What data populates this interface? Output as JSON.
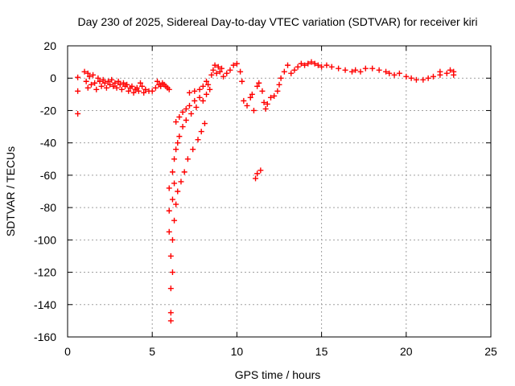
{
  "chart_data": {
    "type": "scatter",
    "title": "Day 230 of 2025, Sidereal Day-to-day VTEC variation (SDTVAR) for receiver kiri",
    "xlabel": "GPS time / hours",
    "ylabel": "SDTVAR / TECUs",
    "xlim": [
      0,
      25
    ],
    "ylim": [
      -160,
      20
    ],
    "xticks": [
      0,
      5,
      10,
      15,
      20,
      25
    ],
    "yticks": [
      -160,
      -140,
      -120,
      -100,
      -80,
      -60,
      -40,
      -20,
      0,
      20
    ],
    "grid": true,
    "marker": "plus",
    "color": "#ff0000",
    "series": [
      {
        "name": "",
        "points": [
          [
            0.6,
            0.5
          ],
          [
            0.6,
            -8
          ],
          [
            0.6,
            -22
          ],
          [
            1.0,
            4
          ],
          [
            1.1,
            -2
          ],
          [
            1.2,
            3
          ],
          [
            1.2,
            -6
          ],
          [
            1.3,
            1
          ],
          [
            1.4,
            -4
          ],
          [
            1.5,
            2
          ],
          [
            1.6,
            -3
          ],
          [
            1.7,
            -7
          ],
          [
            1.8,
            0
          ],
          [
            1.9,
            -2
          ],
          [
            2.0,
            -5
          ],
          [
            2.1,
            -1
          ],
          [
            2.2,
            -3
          ],
          [
            2.3,
            -6
          ],
          [
            2.4,
            -2
          ],
          [
            2.5,
            -4
          ],
          [
            2.6,
            -1
          ],
          [
            2.7,
            -5
          ],
          [
            2.8,
            -3
          ],
          [
            2.9,
            -6
          ],
          [
            3.0,
            -2
          ],
          [
            3.1,
            -4
          ],
          [
            3.2,
            -7
          ],
          [
            3.3,
            -3
          ],
          [
            3.4,
            -5
          ],
          [
            3.5,
            -4
          ],
          [
            3.6,
            -8
          ],
          [
            3.7,
            -6
          ],
          [
            3.8,
            -5
          ],
          [
            3.9,
            -9
          ],
          [
            4.0,
            -7
          ],
          [
            4.1,
            -6
          ],
          [
            4.2,
            -8
          ],
          [
            4.3,
            -3
          ],
          [
            4.4,
            -5
          ],
          [
            4.5,
            -9
          ],
          [
            4.6,
            -7
          ],
          [
            4.8,
            -8
          ],
          [
            5.0,
            -8
          ],
          [
            5.2,
            -6
          ],
          [
            5.3,
            -2
          ],
          [
            5.4,
            -4
          ],
          [
            5.5,
            -5
          ],
          [
            5.6,
            -3
          ],
          [
            5.7,
            -4
          ],
          [
            5.8,
            -5
          ],
          [
            5.9,
            -6
          ],
          [
            6.0,
            -7
          ],
          [
            6.0,
            -68
          ],
          [
            6.0,
            -82
          ],
          [
            6.0,
            -95
          ],
          [
            6.1,
            -110
          ],
          [
            6.1,
            -130
          ],
          [
            6.1,
            -145
          ],
          [
            6.1,
            -150
          ],
          [
            6.2,
            -58
          ],
          [
            6.2,
            -75
          ],
          [
            6.2,
            -100
          ],
          [
            6.2,
            -120
          ],
          [
            6.3,
            -50
          ],
          [
            6.3,
            -65
          ],
          [
            6.3,
            -88
          ],
          [
            6.4,
            -27
          ],
          [
            6.4,
            -44
          ],
          [
            6.4,
            -78
          ],
          [
            6.5,
            -40
          ],
          [
            6.5,
            -70
          ],
          [
            6.6,
            -24
          ],
          [
            6.6,
            -36
          ],
          [
            6.7,
            -64
          ],
          [
            6.8,
            -21
          ],
          [
            6.8,
            -30
          ],
          [
            6.9,
            -58
          ],
          [
            7.0,
            -19
          ],
          [
            7.0,
            -26
          ],
          [
            7.1,
            -50
          ],
          [
            7.2,
            -9
          ],
          [
            7.2,
            -17
          ],
          [
            7.3,
            -22
          ],
          [
            7.4,
            -44
          ],
          [
            7.5,
            -8
          ],
          [
            7.5,
            -14
          ],
          [
            7.6,
            -18
          ],
          [
            7.7,
            -38
          ],
          [
            7.8,
            -7
          ],
          [
            7.8,
            -12
          ],
          [
            7.9,
            -33
          ],
          [
            8.0,
            -5
          ],
          [
            8.0,
            -14
          ],
          [
            8.1,
            -28
          ],
          [
            8.2,
            -2
          ],
          [
            8.2,
            -10
          ],
          [
            8.3,
            -4
          ],
          [
            8.4,
            -7
          ],
          [
            8.5,
            2
          ],
          [
            8.6,
            5
          ],
          [
            8.7,
            8
          ],
          [
            8.8,
            3
          ],
          [
            8.9,
            7
          ],
          [
            9.0,
            4
          ],
          [
            9.1,
            6
          ],
          [
            9.2,
            1
          ],
          [
            9.4,
            3
          ],
          [
            9.6,
            5
          ],
          [
            9.8,
            8
          ],
          [
            10.0,
            9
          ],
          [
            10.2,
            4
          ],
          [
            10.3,
            -2
          ],
          [
            10.4,
            -14
          ],
          [
            10.6,
            -17
          ],
          [
            10.8,
            -12
          ],
          [
            10.9,
            -10
          ],
          [
            11.0,
            -20
          ],
          [
            11.1,
            -62
          ],
          [
            11.2,
            -5
          ],
          [
            11.2,
            -59
          ],
          [
            11.3,
            -3
          ],
          [
            11.4,
            -57
          ],
          [
            11.5,
            -8
          ],
          [
            11.6,
            -15
          ],
          [
            11.7,
            -19
          ],
          [
            11.8,
            -16
          ],
          [
            12.0,
            -12
          ],
          [
            12.2,
            -11
          ],
          [
            12.4,
            -8
          ],
          [
            12.5,
            -4
          ],
          [
            12.6,
            0
          ],
          [
            12.8,
            4
          ],
          [
            13.0,
            8
          ],
          [
            13.2,
            3
          ],
          [
            13.4,
            5
          ],
          [
            13.6,
            7
          ],
          [
            13.8,
            9
          ],
          [
            14.0,
            8
          ],
          [
            14.2,
            9
          ],
          [
            14.4,
            10
          ],
          [
            14.6,
            9
          ],
          [
            14.8,
            8
          ],
          [
            15.0,
            7
          ],
          [
            15.3,
            8
          ],
          [
            15.6,
            7
          ],
          [
            16.0,
            6
          ],
          [
            16.4,
            5
          ],
          [
            16.8,
            4
          ],
          [
            17.0,
            5
          ],
          [
            17.3,
            4
          ],
          [
            17.6,
            6
          ],
          [
            18.0,
            6
          ],
          [
            18.4,
            5
          ],
          [
            18.8,
            4
          ],
          [
            19.0,
            3
          ],
          [
            19.3,
            2
          ],
          [
            19.6,
            3
          ],
          [
            20.0,
            1
          ],
          [
            20.3,
            0
          ],
          [
            20.6,
            -1
          ],
          [
            21.0,
            -1
          ],
          [
            21.3,
            0
          ],
          [
            21.6,
            1
          ],
          [
            22.0,
            2
          ],
          [
            22.0,
            4
          ],
          [
            22.4,
            3
          ],
          [
            22.6,
            5
          ],
          [
            22.8,
            2
          ],
          [
            22.8,
            4
          ]
        ]
      }
    ]
  }
}
